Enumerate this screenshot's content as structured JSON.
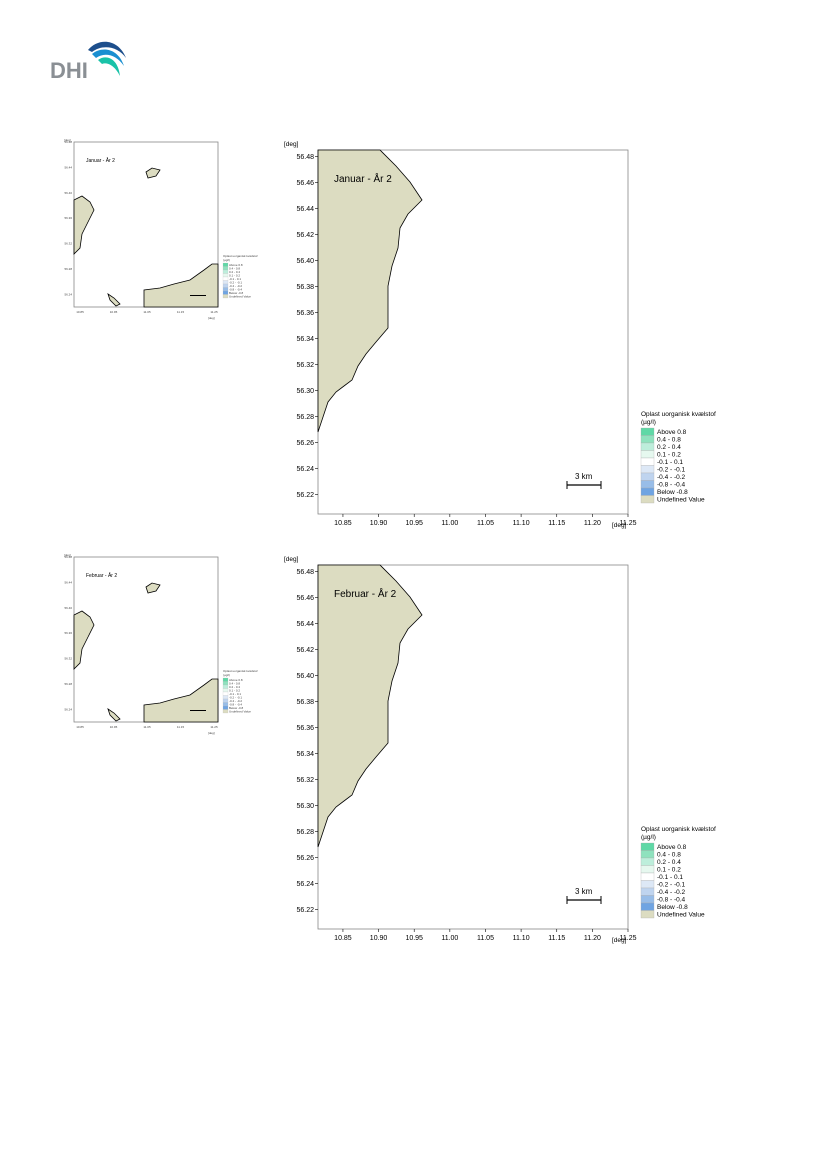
{
  "logo": {
    "text": "DHI",
    "colors": {
      "text": "#8a8f94",
      "swoosh_dark": "#1d4f8c",
      "swoosh_mid": "#1a8fd1",
      "swoosh_light": "#19c2a8"
    }
  },
  "legend": {
    "title": "Oplast uorganisk kvælstof",
    "unit": "(µg/l)",
    "items": [
      {
        "label": "Above  0.8",
        "color": "#5fd8a6"
      },
      {
        "label": "0.4 -  0.8",
        "color": "#8fe2be"
      },
      {
        "label": "0.2 -  0.4",
        "color": "#bdeedb"
      },
      {
        "label": "0.1 -  0.2",
        "color": "#e6f8ef"
      },
      {
        "label": "-0.1 -  0.1",
        "color": "#ffffff"
      },
      {
        "label": "-0.2 - -0.1",
        "color": "#dde8f6"
      },
      {
        "label": "-0.4 - -0.2",
        "color": "#bfd4ef"
      },
      {
        "label": "-0.8 - -0.4",
        "color": "#98bde8"
      },
      {
        "label": "Below -0.8",
        "color": "#6fa4e2"
      },
      {
        "label": "Undefined Value",
        "color": "#dcdcc1"
      }
    ]
  },
  "axes": {
    "unit": "[deg]",
    "x_ticks": [
      "10.85",
      "10.90",
      "10.95",
      "11.00",
      "11.05",
      "11.10",
      "11.15",
      "11.20",
      "11.25"
    ],
    "y_ticks": [
      "56.48",
      "56.46",
      "56.44",
      "56.42",
      "56.40",
      "56.38",
      "56.36",
      "56.34",
      "56.32",
      "56.30",
      "56.28",
      "56.26",
      "56.24",
      "56.22"
    ],
    "xlim": [
      10.815,
      11.25
    ],
    "ylim": [
      56.205,
      56.485
    ]
  },
  "scale_bar": {
    "label": "3 km"
  },
  "panels": [
    {
      "title": "Januar - År 2"
    },
    {
      "title": "Februar - År 2"
    }
  ]
}
